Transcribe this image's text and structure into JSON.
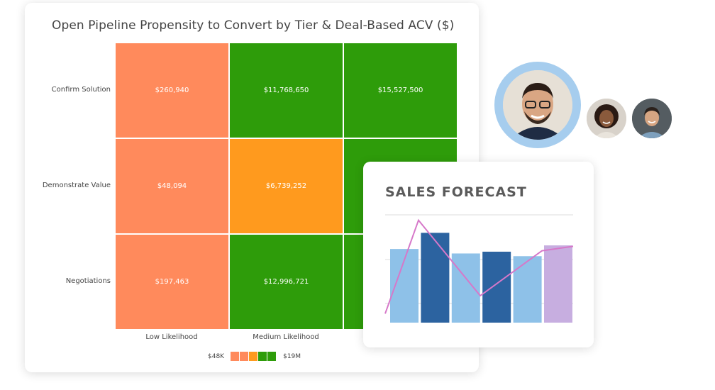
{
  "chart_data": [
    {
      "type": "heatmap",
      "title": "Open Pipeline Propensity to Convert by Tier & Deal-Based ACV ($)",
      "rows": [
        "Confirm Solution",
        "Demonstrate Value",
        "Negotiations"
      ],
      "columns": [
        "Low Likelihood",
        "Medium Likelihood",
        ""
      ],
      "cells": [
        [
          {
            "label": "$260,940",
            "color": "#ff8a5c"
          },
          {
            "label": "$11,768,650",
            "color": "#2e9c0a"
          },
          {
            "label": "$15,527,500",
            "color": "#2e9c0a"
          }
        ],
        [
          {
            "label": "$48,094",
            "color": "#ff8a5c"
          },
          {
            "label": "$6,739,252",
            "color": "#ff9a1e"
          },
          {
            "label": "",
            "color": "#2e9c0a"
          }
        ],
        [
          {
            "label": "$197,463",
            "color": "#ff8a5c"
          },
          {
            "label": "$12,996,721",
            "color": "#2e9c0a"
          },
          {
            "label": "",
            "color": "#2e9c0a"
          }
        ]
      ],
      "legend": {
        "min_label": "$48K",
        "max_label": "$19M",
        "colors": [
          "#ff8a5c",
          "#ff8a5c",
          "#ff9a1e",
          "#2e9c0a",
          "#2e9c0a"
        ]
      }
    },
    {
      "type": "bar",
      "title": "SALES FORECAST",
      "bar_values": [
        82,
        100,
        77,
        79,
        74,
        86
      ],
      "bar_colors": [
        "#8ec1e8",
        "#2c63a0",
        "#8ec1e8",
        "#2c63a0",
        "#8ec1e8",
        "#c7aee0"
      ],
      "line_values": [
        10,
        114,
        30,
        80,
        85
      ],
      "line_color": "#d678c9",
      "ylim": [
        0,
        120
      ]
    }
  ],
  "avatars": [
    {
      "name": "avatar-main",
      "ring": "#a6cdee"
    },
    {
      "name": "avatar-woman"
    },
    {
      "name": "avatar-man"
    }
  ]
}
